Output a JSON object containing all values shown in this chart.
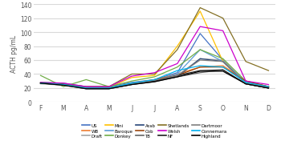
{
  "months": [
    "F",
    "M",
    "A",
    "M",
    "J",
    "J",
    "A",
    "S",
    "O",
    "N",
    "D"
  ],
  "ylim": [
    0,
    140
  ],
  "yticks": [
    0,
    20,
    40,
    60,
    80,
    100,
    120,
    140
  ],
  "ylabel": "ACTH pg/mL",
  "bg_color": "#ffffff",
  "grid_color": "#d9d9d9",
  "series": {
    "US": {
      "color": "#4472c4",
      "data": [
        28,
        27,
        22,
        22,
        28,
        32,
        42,
        98,
        60,
        28,
        22
      ]
    },
    "WB": {
      "color": "#ed7d31",
      "data": [
        27,
        25,
        21,
        21,
        27,
        32,
        40,
        50,
        52,
        30,
        22
      ]
    },
    "Draft": {
      "color": "#a5a5a5",
      "data": [
        26,
        24,
        20,
        20,
        26,
        30,
        38,
        62,
        60,
        28,
        22
      ]
    },
    "Mini": {
      "color": "#ffc000",
      "data": [
        28,
        26,
        21,
        21,
        35,
        38,
        80,
        130,
        58,
        26,
        22
      ]
    },
    "Baroque": {
      "color": "#5b9bd5",
      "data": [
        28,
        26,
        21,
        21,
        27,
        31,
        40,
        75,
        58,
        28,
        22
      ]
    },
    "Donkey": {
      "color": "#70ad47",
      "data": [
        38,
        22,
        32,
        22,
        30,
        36,
        50,
        75,
        62,
        30,
        22
      ]
    },
    "Arab": {
      "color": "#264478",
      "data": [
        27,
        25,
        19,
        19,
        25,
        30,
        36,
        62,
        58,
        26,
        20
      ]
    },
    "Cob": {
      "color": "#9e480e",
      "data": [
        27,
        25,
        20,
        20,
        26,
        32,
        38,
        50,
        50,
        30,
        22
      ]
    },
    "TB": {
      "color": "#636363",
      "data": [
        27,
        24,
        19,
        19,
        25,
        29,
        36,
        42,
        46,
        26,
        20
      ]
    },
    "Shetlands": {
      "color": "#847024",
      "data": [
        27,
        26,
        22,
        22,
        40,
        40,
        75,
        135,
        120,
        58,
        45
      ]
    },
    "Welsh": {
      "color": "#cc00cc",
      "data": [
        28,
        27,
        22,
        22,
        37,
        42,
        55,
        108,
        102,
        30,
        25
      ]
    },
    "NF": {
      "color": "#1f1f1f",
      "data": [
        27,
        25,
        20,
        20,
        26,
        30,
        38,
        45,
        46,
        26,
        20
      ]
    },
    "Dartmoor": {
      "color": "#7f7f7f",
      "data": [
        27,
        25,
        20,
        20,
        26,
        31,
        38,
        60,
        58,
        26,
        21
      ]
    },
    "Connemara": {
      "color": "#00b0f0",
      "data": [
        27,
        25,
        20,
        20,
        27,
        32,
        45,
        52,
        50,
        28,
        22
      ]
    },
    "Highland": {
      "color": "#000000",
      "data": [
        27,
        24,
        19,
        19,
        25,
        29,
        36,
        44,
        44,
        26,
        20
      ]
    }
  },
  "legend_rows": [
    [
      "US",
      "WB",
      "Draft",
      "Mini",
      "Baroque"
    ],
    [
      "Donkey",
      "Arab",
      "Cob",
      "TB",
      "Shetlands"
    ],
    [
      "Welsh",
      "NF",
      "Dartmoor",
      "Connemara",
      "Highland"
    ]
  ]
}
